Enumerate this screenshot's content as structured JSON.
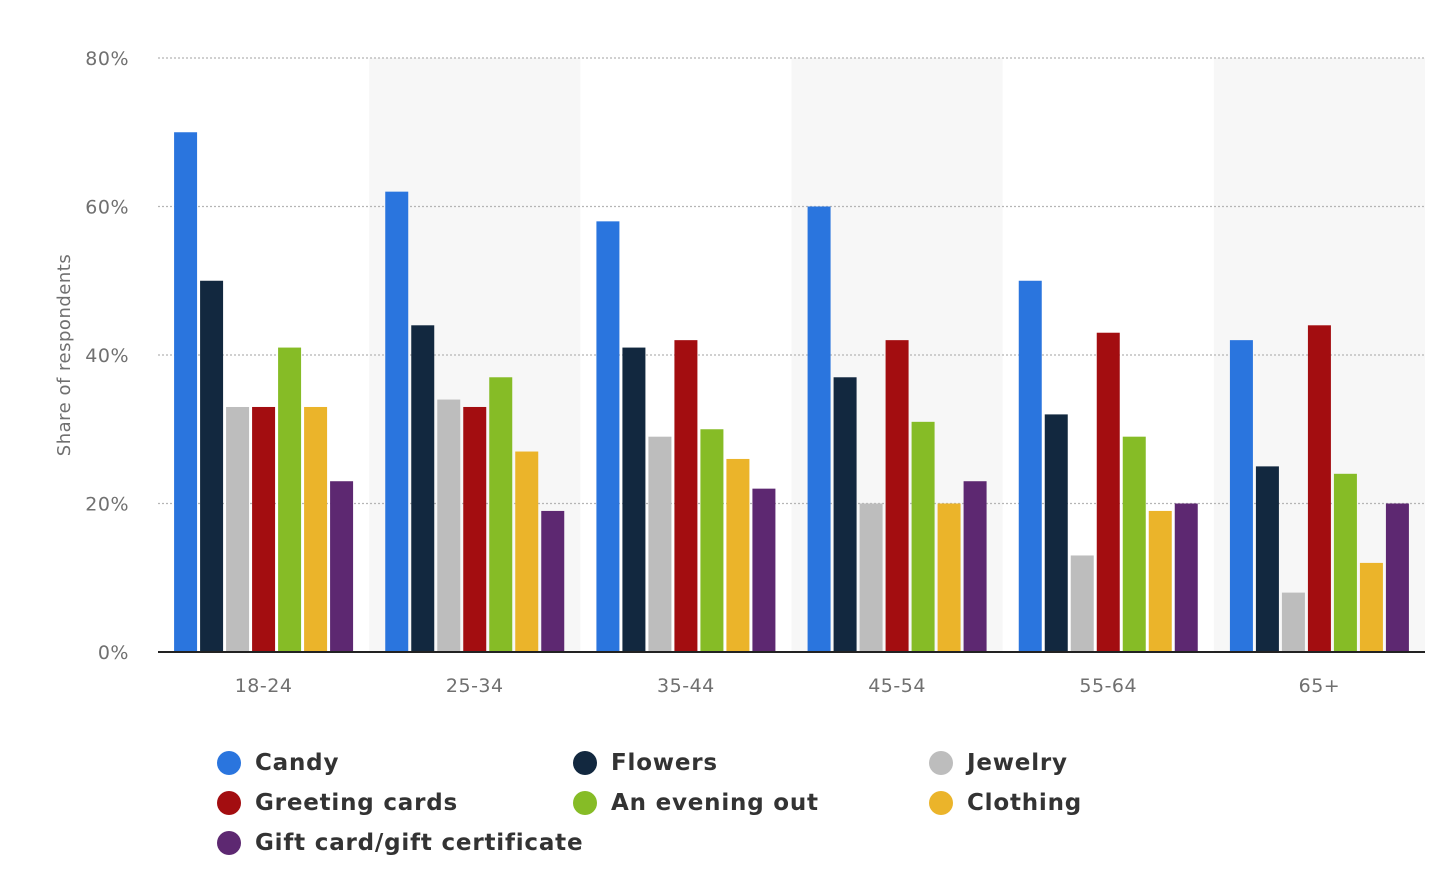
{
  "chart_data": {
    "type": "bar",
    "ylabel": "Share of respondents",
    "xlabel": "",
    "ylim": [
      0,
      80
    ],
    "yticks": [
      "0%",
      "20%",
      "40%",
      "60%",
      "80%"
    ],
    "ytick_values": [
      0,
      20,
      40,
      60,
      80
    ],
    "grid": true,
    "legend_position": "bottom",
    "categories": [
      "18-24",
      "25-34",
      "35-44",
      "45-54",
      "55-64",
      "65+"
    ],
    "series": [
      {
        "name": "Candy",
        "color": "#2a75de",
        "values": [
          70,
          62,
          58,
          60,
          50,
          42
        ]
      },
      {
        "name": "Flowers",
        "color": "#12283f",
        "values": [
          50,
          44,
          41,
          37,
          32,
          25
        ]
      },
      {
        "name": "Jewelry",
        "color": "#bdbdbd",
        "values": [
          33,
          34,
          29,
          20,
          13,
          8
        ]
      },
      {
        "name": "Greeting cards",
        "color": "#a30d10",
        "values": [
          33,
          33,
          42,
          42,
          43,
          44
        ]
      },
      {
        "name": "An evening out",
        "color": "#86bc26",
        "values": [
          41,
          37,
          30,
          31,
          29,
          24
        ]
      },
      {
        "name": "Clothing",
        "color": "#ebb42a",
        "values": [
          33,
          27,
          26,
          20,
          19,
          12
        ]
      },
      {
        "name": "Gift card/gift certificate",
        "color": "#5d2871",
        "values": [
          23,
          19,
          22,
          23,
          20,
          20
        ]
      }
    ]
  }
}
